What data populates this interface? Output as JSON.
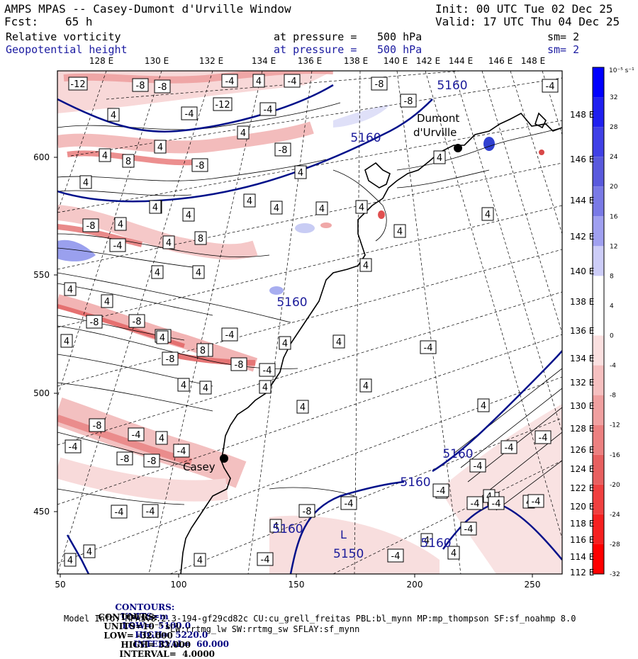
{
  "header": {
    "title": "AMPS MPAS -- Casey-Dumont d'Urville Window",
    "fcst_label": "Fcst:",
    "fcst_value": "65 h",
    "init": "Init: 00 UTC Tue 02 Dec 25",
    "valid": "Valid: 17 UTC Thu 04 Dec 25",
    "field1_name": "Relative vorticity",
    "field1_pressure_label": "at pressure =",
    "field1_pressure_value": "500 hPa",
    "field1_sm": "sm= 2",
    "field2_name": "Geopotential height",
    "field2_pressure_label": "at pressure =",
    "field2_pressure_value": "500 hPa",
    "field2_sm": "sm= 2"
  },
  "map": {
    "top_lon_labels": [
      "128 E",
      "130 E",
      "132 E",
      "134 E",
      "136 E",
      "138 E",
      "140 E",
      "142 E",
      "144 E",
      "146 E",
      "148 E"
    ],
    "right_lon_labels": [
      "148 E",
      "146 E",
      "144 E",
      "142 E",
      "140 E",
      "138 E",
      "136 E",
      "134 E",
      "132 E",
      "130 E",
      "128 E",
      "126 E",
      "124 E",
      "122 E",
      "120 E",
      "118 E",
      "116 E",
      "114 E",
      "112 E"
    ],
    "bottom_axis_ticks": [
      "50",
      "100",
      "150",
      "200",
      "250"
    ],
    "left_axis_ticks": [
      "600",
      "550",
      "500",
      "450"
    ],
    "place_labels": {
      "dumont": "Dumont",
      "durville": "d'Urville",
      "casey": "Casey"
    },
    "height_contour_labels": [
      "5160",
      "5160",
      "5160",
      "5160",
      "5160",
      "5160",
      "5160"
    ],
    "low_marker_label": "L",
    "low_marker_value": "5150",
    "vort_box_labels": [
      "-12",
      "-8",
      "-8",
      "-4",
      "4",
      "-4",
      "-8",
      "-4",
      "4",
      "4",
      "8",
      "4",
      "-4",
      "-12",
      "-4",
      "-8",
      "-8",
      "4",
      "4",
      "-8",
      "4",
      "4",
      "4",
      "4",
      "4",
      "4",
      "-8",
      "4",
      "-4",
      "4",
      "8",
      "4",
      "-8",
      "4",
      "4",
      "4",
      "4",
      "4",
      "-4",
      "-8",
      "4",
      "4",
      "-8",
      "-8",
      "-4",
      "-4",
      "4",
      "8",
      "-8",
      "-4",
      "4",
      "4",
      "4",
      "4",
      "4",
      "4",
      "4",
      "4",
      "4",
      "-4",
      "4",
      "4",
      "-8",
      "-4",
      "4",
      "-4",
      "-8",
      "-8",
      "-4",
      "-4",
      "-4",
      "-4",
      "-8",
      "4",
      "-4",
      "-4",
      "4",
      "-4",
      "4",
      "-4",
      "-4",
      "4",
      "4",
      "-4",
      "4",
      "-4",
      "4",
      "4",
      "-4",
      "-4",
      "4",
      "-4",
      "4"
    ]
  },
  "colorbar": {
    "units_label": "10⁻⁵ s⁻¹",
    "tick_labels": [
      "32",
      "28",
      "24",
      "20",
      "16",
      "12",
      "8",
      "4",
      "0",
      "-4",
      "-8",
      "-12",
      "-16",
      "-20",
      "-24",
      "-28",
      "-32"
    ],
    "colors": [
      "#0000ff",
      "#2020f0",
      "#4040e6",
      "#5a5add",
      "#7a7ae6",
      "#a0a0f0",
      "#cdcdf8",
      "#ffffff",
      "#ffffff",
      "#fbe0e0",
      "#f6c0c0",
      "#f0a0a0",
      "#ec8080",
      "#e86060",
      "#f04040",
      "#f62020",
      "#ff0000"
    ]
  },
  "footer": {
    "line1_contours": "CONTOURS:",
    "line1_units": "UNITS=m",
    "line1_low": "LOW=  5100.0",
    "line1_high": "HIGH=  5220.0",
    "line1_interval": "INTERVAL=  60.000",
    "line2_contours": "CONTOURS:",
    "line2_units": "UNITS=10⁻⁵ s⁻¹",
    "line2_low": "LOW= -32.000",
    "line2_high": "HIGH= 32.000",
    "line2_interval": "INTERVAL=  4.0000",
    "model_info": "Model Info: MPASv8.2.3-194-gf29cd82c CU:cu_grell_freitas PBL:bl_mynn MP:mp_thompson SF:sf_noahmp 8.0",
    "model_info2": "LW:rrtmg_lw SW:rrtmg_sw SFLAY:sf_mynn"
  }
}
